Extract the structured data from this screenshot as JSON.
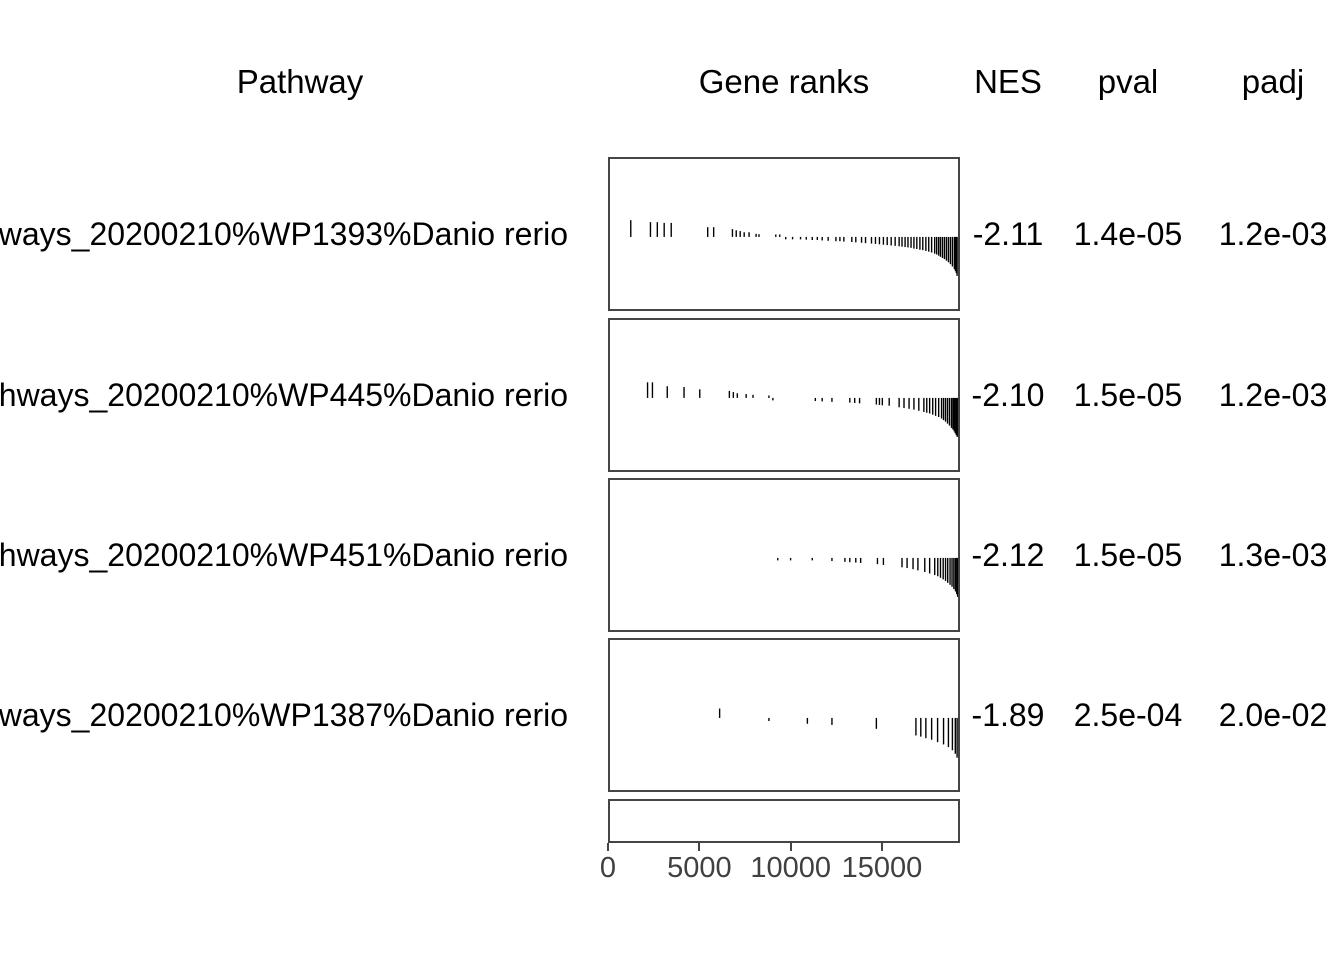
{
  "colors": {
    "background": "#ffffff",
    "text": "#000000",
    "axis_text": "#404040",
    "panel_border": "#454545",
    "rank_tick": "#000000"
  },
  "chart_data": {
    "type": "table",
    "subtype": "fgsea-gsea-table",
    "columns": [
      "Pathway",
      "Gene ranks",
      "NES",
      "pval",
      "padj"
    ],
    "x_axis": {
      "ticks": [
        0,
        5000,
        10000,
        15000
      ],
      "max": 19270,
      "position": "bottom"
    },
    "pathways": [
      {
        "label": "ways_20200210%WP1393%Danio rerio",
        "nes": "-2.11",
        "pval": "1.4e-05",
        "padj": "1.2e-03",
        "ticks": [
          [
            1150,
            0.43
          ],
          [
            2240,
            0.38
          ],
          [
            2620,
            0.38
          ],
          [
            3000,
            0.36
          ],
          [
            3390,
            0.36
          ],
          [
            5410,
            0.25
          ],
          [
            5740,
            0.25
          ],
          [
            6780,
            0.2
          ],
          [
            6990,
            0.17
          ],
          [
            7210,
            0.15
          ],
          [
            7430,
            0.12
          ],
          [
            7700,
            0.12
          ],
          [
            8090,
            0.08
          ],
          [
            8250,
            0.07
          ],
          [
            9180,
            0.05
          ],
          [
            9400,
            0.04
          ],
          [
            9730,
            -0.05
          ],
          [
            10110,
            -0.05
          ],
          [
            10550,
            -0.06
          ],
          [
            10870,
            -0.07
          ],
          [
            11200,
            -0.08
          ],
          [
            11480,
            -0.08
          ],
          [
            11750,
            -0.09
          ],
          [
            12080,
            -0.1
          ],
          [
            12510,
            -0.11
          ],
          [
            12730,
            -0.11
          ],
          [
            12950,
            -0.12
          ],
          [
            13390,
            -0.13
          ],
          [
            13610,
            -0.14
          ],
          [
            13930,
            -0.15
          ],
          [
            14150,
            -0.16
          ],
          [
            14480,
            -0.17
          ],
          [
            14700,
            -0.18
          ],
          [
            14920,
            -0.19
          ],
          [
            15140,
            -0.2
          ],
          [
            15350,
            -0.21
          ],
          [
            15570,
            -0.22
          ],
          [
            15790,
            -0.23
          ],
          [
            16010,
            -0.24
          ],
          [
            16170,
            -0.25
          ],
          [
            16340,
            -0.26
          ],
          [
            16500,
            -0.27
          ],
          [
            16670,
            -0.28
          ],
          [
            16830,
            -0.3
          ],
          [
            16990,
            -0.31
          ],
          [
            17160,
            -0.33
          ],
          [
            17320,
            -0.34
          ],
          [
            17490,
            -0.36
          ],
          [
            17650,
            -0.38
          ],
          [
            17810,
            -0.4
          ],
          [
            17980,
            -0.43
          ],
          [
            18090,
            -0.45
          ],
          [
            18200,
            -0.48
          ],
          [
            18300,
            -0.51
          ],
          [
            18410,
            -0.54
          ],
          [
            18520,
            -0.57
          ],
          [
            18630,
            -0.61
          ],
          [
            18740,
            -0.65
          ],
          [
            18850,
            -0.7
          ],
          [
            18960,
            -0.76
          ],
          [
            19070,
            -0.83
          ],
          [
            19130,
            -0.88
          ],
          [
            19180,
            -0.93
          ],
          [
            19220,
            -1.0
          ]
        ]
      },
      {
        "label": "hways_20200210%WP445%Danio rerio",
        "nes": "-2.10",
        "pval": "1.5e-05",
        "padj": "1.2e-03",
        "ticks": [
          [
            2080,
            0.4
          ],
          [
            2350,
            0.4
          ],
          [
            3170,
            0.3
          ],
          [
            4100,
            0.28
          ],
          [
            4970,
            0.22
          ],
          [
            6610,
            0.18
          ],
          [
            6830,
            0.15
          ],
          [
            7050,
            0.12
          ],
          [
            7540,
            0.1
          ],
          [
            7920,
            0.08
          ],
          [
            8800,
            0.05
          ],
          [
            9020,
            -0.04
          ],
          [
            11370,
            -0.08
          ],
          [
            11750,
            -0.09
          ],
          [
            12290,
            -0.1
          ],
          [
            13280,
            -0.12
          ],
          [
            13550,
            -0.13
          ],
          [
            13820,
            -0.14
          ],
          [
            14750,
            -0.17
          ],
          [
            14920,
            -0.18
          ],
          [
            15080,
            -0.19
          ],
          [
            15460,
            -0.2
          ],
          [
            16010,
            -0.24
          ],
          [
            16280,
            -0.26
          ],
          [
            16560,
            -0.28
          ],
          [
            16830,
            -0.3
          ],
          [
            17100,
            -0.33
          ],
          [
            17380,
            -0.36
          ],
          [
            17540,
            -0.38
          ],
          [
            17700,
            -0.4
          ],
          [
            17870,
            -0.43
          ],
          [
            18030,
            -0.46
          ],
          [
            18200,
            -0.49
          ],
          [
            18360,
            -0.53
          ],
          [
            18470,
            -0.57
          ],
          [
            18580,
            -0.61
          ],
          [
            18690,
            -0.66
          ],
          [
            18800,
            -0.71
          ],
          [
            18910,
            -0.77
          ],
          [
            18990,
            -0.81
          ],
          [
            19060,
            -0.86
          ],
          [
            19120,
            -0.91
          ],
          [
            19180,
            -0.96
          ],
          [
            19230,
            -1.0
          ]
        ]
      },
      {
        "label": "hways_20200210%WP451%Danio rerio",
        "nes": "-2.12",
        "pval": "1.5e-05",
        "padj": "1.3e-03",
        "ticks": [
          [
            9290,
            -0.04
          ],
          [
            10000,
            -0.05
          ],
          [
            11200,
            -0.06
          ],
          [
            12290,
            -0.08
          ],
          [
            13010,
            -0.1
          ],
          [
            13280,
            -0.11
          ],
          [
            13610,
            -0.12
          ],
          [
            13880,
            -0.13
          ],
          [
            14810,
            -0.16
          ],
          [
            15140,
            -0.18
          ],
          [
            16170,
            -0.24
          ],
          [
            16450,
            -0.26
          ],
          [
            16780,
            -0.29
          ],
          [
            17050,
            -0.32
          ],
          [
            17430,
            -0.36
          ],
          [
            17700,
            -0.4
          ],
          [
            17980,
            -0.44
          ],
          [
            18150,
            -0.47
          ],
          [
            18300,
            -0.51
          ],
          [
            18450,
            -0.55
          ],
          [
            18580,
            -0.59
          ],
          [
            18700,
            -0.64
          ],
          [
            18830,
            -0.69
          ],
          [
            18940,
            -0.74
          ],
          [
            19040,
            -0.8
          ],
          [
            19130,
            -0.86
          ],
          [
            19200,
            -0.93
          ],
          [
            19250,
            -1.0
          ]
        ]
      },
      {
        "label": "ways_20200210%WP1387%Danio rerio",
        "nes": "-1.89",
        "pval": "2.5e-04",
        "padj": "2.0e-02",
        "ticks": [
          [
            6070,
            0.24
          ],
          [
            8800,
            -0.08
          ],
          [
            10930,
            -0.15
          ],
          [
            12290,
            -0.18
          ],
          [
            14750,
            -0.28
          ],
          [
            16940,
            -0.45
          ],
          [
            17210,
            -0.48
          ],
          [
            17490,
            -0.52
          ],
          [
            17810,
            -0.56
          ],
          [
            18140,
            -0.62
          ],
          [
            18470,
            -0.68
          ],
          [
            18740,
            -0.75
          ],
          [
            18960,
            -0.83
          ],
          [
            19120,
            -0.92
          ],
          [
            19220,
            -1.02
          ]
        ]
      }
    ]
  }
}
